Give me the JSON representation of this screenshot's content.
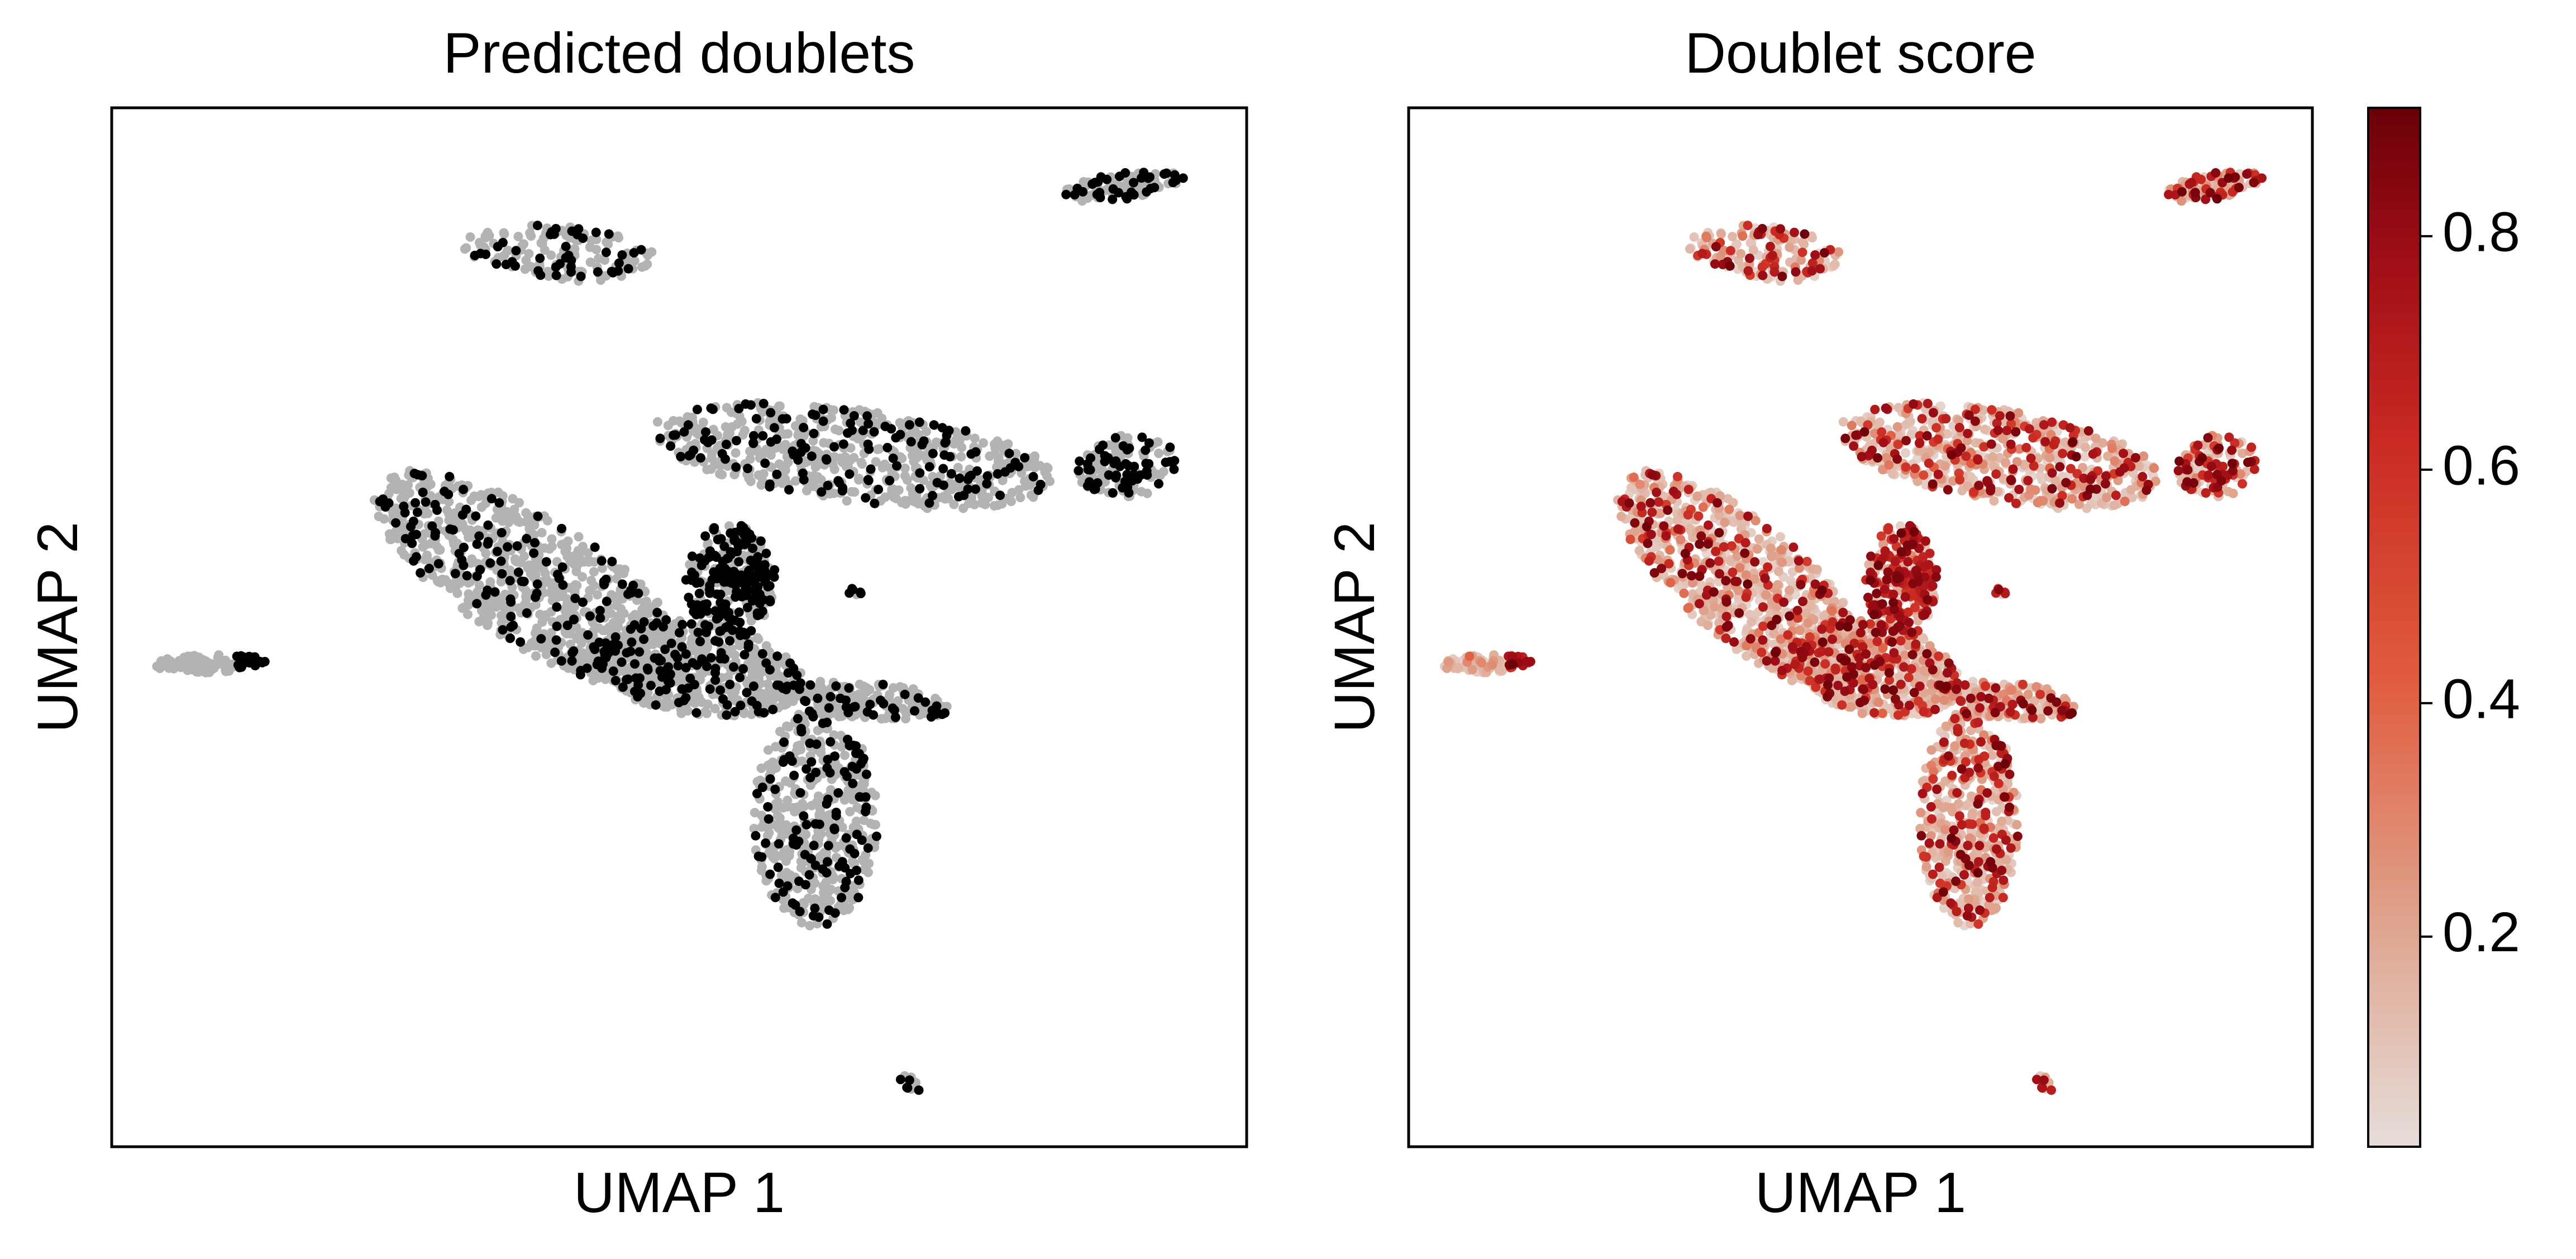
{
  "chart_data": [
    {
      "type": "scatter",
      "title": "Predicted doublets",
      "xlabel": "UMAP 1",
      "ylabel": "UMAP 2",
      "xlim": [
        0,
        10
      ],
      "ylim": [
        0,
        10
      ],
      "grid": false,
      "colors": {
        "singlet": "#b3b3b3",
        "doublet": "#000000"
      },
      "clusters": [
        {
          "kind": "ellipse",
          "cx": 0.85,
          "cy": 4.65,
          "rx": 0.5,
          "ry": 0.09,
          "angle": 2,
          "n": 90,
          "doublet_frac": 0.25,
          "doublet_side": "right"
        },
        {
          "kind": "ellipse",
          "cx": 3.95,
          "cy": 8.6,
          "rx": 0.26,
          "ry": 0.85,
          "angle": 85,
          "n": 160,
          "doublet_frac": 0.25
        },
        {
          "kind": "ellipse",
          "cx": 8.95,
          "cy": 9.25,
          "rx": 0.58,
          "ry": 0.13,
          "angle": 8,
          "n": 90,
          "doublet_frac": 0.45
        },
        {
          "kind": "ellipse",
          "cx": 8.95,
          "cy": 6.55,
          "rx": 0.45,
          "ry": 0.3,
          "angle": 5,
          "n": 130,
          "doublet_frac": 0.45
        },
        {
          "kind": "ellipse",
          "cx": 6.55,
          "cy": 6.65,
          "rx": 1.8,
          "ry": 0.45,
          "angle": -8,
          "n": 650,
          "doublet_frac": 0.22
        },
        {
          "kind": "ellipse",
          "cx": 3.7,
          "cy": 5.45,
          "rx": 1.65,
          "ry": 0.6,
          "angle": -35,
          "n": 900,
          "doublet_frac": 0.17
        },
        {
          "kind": "ellipse",
          "cx": 5.15,
          "cy": 4.6,
          "rx": 0.95,
          "ry": 0.45,
          "angle": -10,
          "n": 550,
          "doublet_frac": 0.22
        },
        {
          "kind": "ellipse",
          "cx": 5.45,
          "cy": 5.45,
          "rx": 0.4,
          "ry": 0.55,
          "angle": 0,
          "n": 260,
          "doublet_frac": 0.6
        },
        {
          "kind": "ellipse",
          "cx": 6.6,
          "cy": 4.3,
          "rx": 0.8,
          "ry": 0.18,
          "angle": -5,
          "n": 200,
          "doublet_frac": 0.22
        },
        {
          "kind": "ellipse",
          "cx": 6.2,
          "cy": 3.15,
          "rx": 0.55,
          "ry": 1.05,
          "angle": 0,
          "n": 500,
          "doublet_frac": 0.22
        },
        {
          "kind": "ellipse",
          "cx": 7.05,
          "cy": 0.6,
          "rx": 0.13,
          "ry": 0.06,
          "angle": -30,
          "n": 12,
          "doublet_frac": 0.5
        },
        {
          "kind": "ellipse",
          "cx": 6.55,
          "cy": 5.35,
          "rx": 0.07,
          "ry": 0.05,
          "angle": 0,
          "n": 6,
          "doublet_frac": 0.6
        }
      ]
    },
    {
      "type": "scatter",
      "title": "Doublet score",
      "xlabel": "UMAP 1",
      "ylabel": "UMAP 2",
      "xlim": [
        0,
        10
      ],
      "ylim": [
        0,
        10
      ],
      "grid": false,
      "colorbar": {
        "range": [
          0.02,
          0.91
        ],
        "ticks": [
          0.2,
          0.4,
          0.6,
          0.8
        ],
        "tick_labels": [
          "0.2",
          "0.4",
          "0.6",
          "0.8"
        ],
        "colormap": "Reds",
        "colors": [
          "#e6ddd9",
          "#dfa893",
          "#e05c3e",
          "#c92a22",
          "#a10e16",
          "#6a0008"
        ]
      }
    }
  ]
}
